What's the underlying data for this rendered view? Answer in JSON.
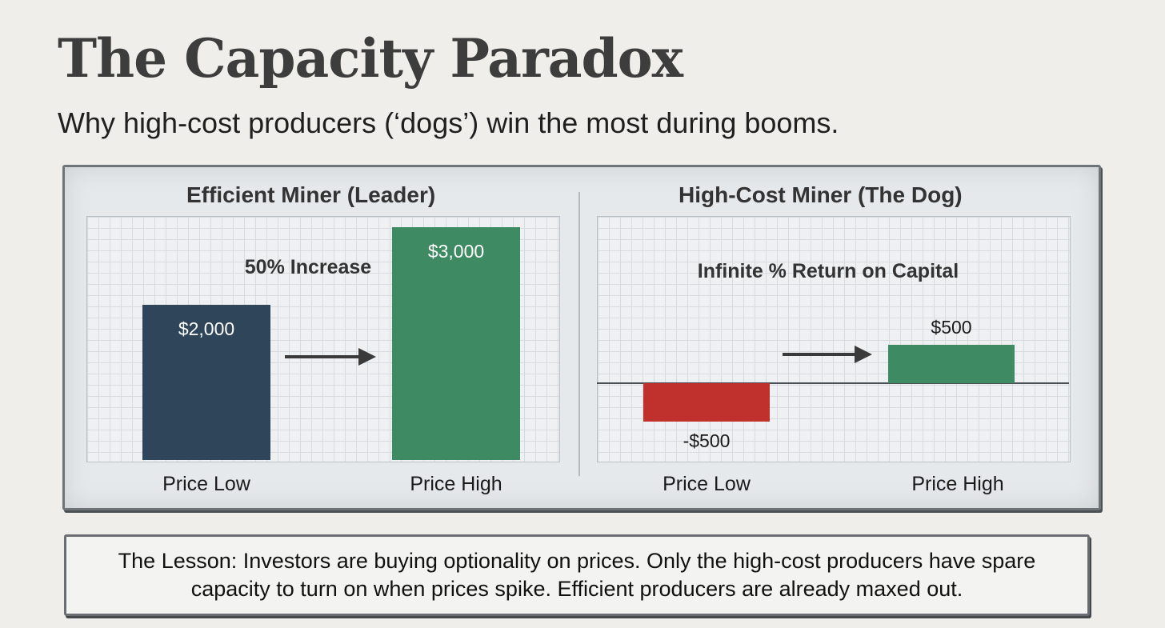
{
  "header": {
    "title": "The Capacity Paradox",
    "subtitle": "Why high-cost producers (‘dogs’) win the most during booms."
  },
  "colors": {
    "navy": "#2f4559",
    "green": "#3e8a63",
    "red": "#c0302d",
    "arrow": "#3a3a3a"
  },
  "chart_data": [
    {
      "type": "bar",
      "title": "Efficient Miner (Leader)",
      "categories": [
        "Price Low",
        "Price High"
      ],
      "values": [
        2000,
        3000
      ],
      "value_labels": [
        "$2,000",
        "$3,000"
      ],
      "bar_colors": [
        "#2f4559",
        "#3e8a63"
      ],
      "annotation": "50% Increase",
      "ylim": [
        0,
        3000
      ]
    },
    {
      "type": "bar",
      "title": "High-Cost Miner (The Dog)",
      "categories": [
        "Price Low",
        "Price High"
      ],
      "values": [
        -500,
        500
      ],
      "value_labels": [
        "-$500",
        "$500"
      ],
      "bar_colors": [
        "#c0302d",
        "#3e8a63"
      ],
      "annotation": "Infinite % Return on Capital",
      "ylim": [
        -500,
        500
      ]
    }
  ],
  "lesson": {
    "text": "The Lesson: Investors are buying optionality on prices. Only the high-cost producers have spare capacity to turn on when prices spike. Efficient producers are already maxed out."
  }
}
